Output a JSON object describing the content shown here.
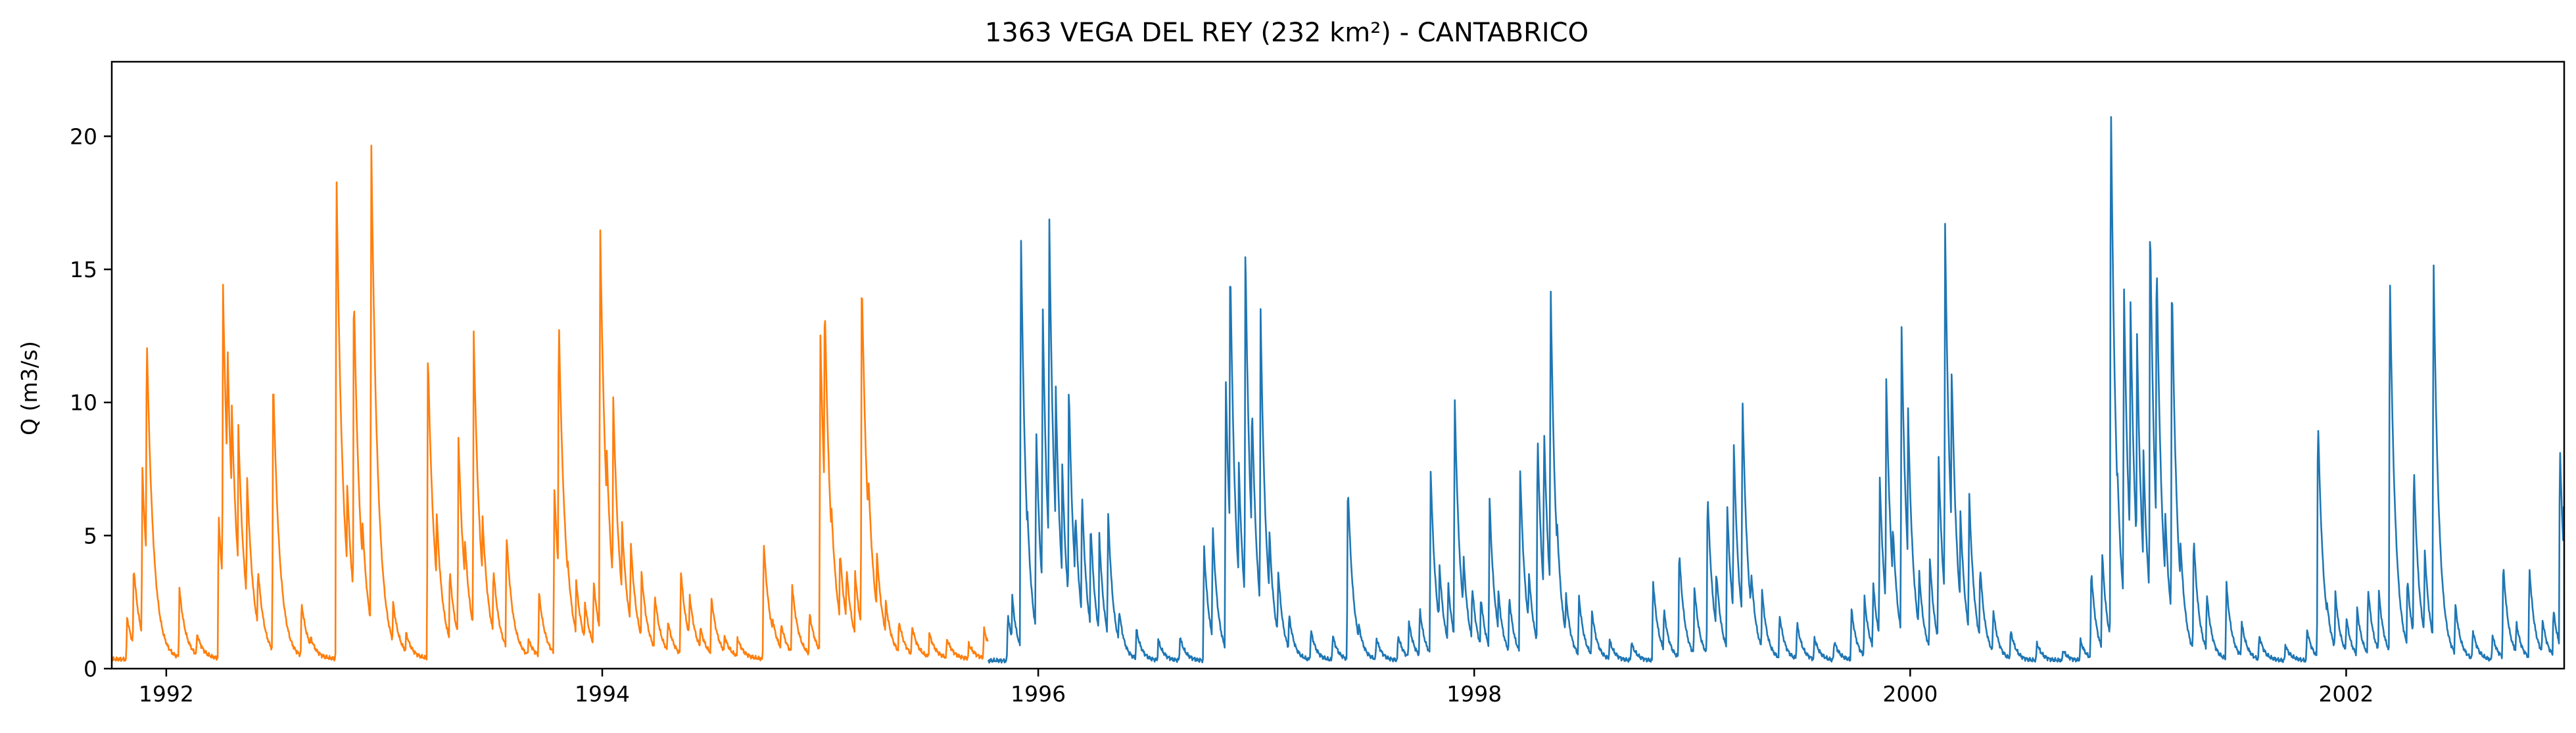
{
  "chart_data": {
    "type": "line",
    "title": "1363 VEGA DEL REY (232 km²) - CANTABRICO",
    "xlabel": "",
    "ylabel": "Q (m3/s)",
    "xlim": [
      1991.75,
      2003.0
    ],
    "ylim": [
      0,
      22.8
    ],
    "x_ticks": [
      1992,
      1994,
      1996,
      1998,
      2000,
      2002
    ],
    "x_tick_labels": [
      "1992",
      "1994",
      "1996",
      "1998",
      "2000",
      "2002"
    ],
    "y_ticks": [
      0,
      5,
      10,
      15,
      20
    ],
    "y_tick_labels": [
      "0",
      "5",
      "10",
      "15",
      "20"
    ],
    "grid": false,
    "legend": "none",
    "series": [
      {
        "color": "#ff7f0e",
        "x_range": [
          1991.75,
          1995.77
        ],
        "base": 0.35,
        "recession": 0.03,
        "events": [
          [
            1991.82,
            1.6
          ],
          [
            1991.85,
            3.6
          ],
          [
            1991.89,
            7.3
          ],
          [
            1991.91,
            12.5
          ],
          [
            1991.97,
            1.4
          ],
          [
            1992.06,
            2.7
          ],
          [
            1992.14,
            1.0
          ],
          [
            1992.24,
            5.5
          ],
          [
            1992.26,
            14.2
          ],
          [
            1992.28,
            12.3
          ],
          [
            1992.3,
            9.8
          ],
          [
            1992.33,
            8.9
          ],
          [
            1992.37,
            7.0
          ],
          [
            1992.42,
            3.5
          ],
          [
            1992.49,
            10.8
          ],
          [
            1992.55,
            1.0
          ],
          [
            1992.62,
            2.2
          ],
          [
            1992.66,
            0.9
          ],
          [
            1992.78,
            18.7
          ],
          [
            1992.8,
            7.0
          ],
          [
            1992.83,
            6.6
          ],
          [
            1992.86,
            14.2
          ],
          [
            1992.9,
            5.2
          ],
          [
            1992.94,
            19.7
          ],
          [
            1992.98,
            4.6
          ],
          [
            1993.04,
            2.2
          ],
          [
            1993.1,
            1.0
          ],
          [
            1993.2,
            11.7
          ],
          [
            1993.24,
            5.6
          ],
          [
            1993.3,
            3.4
          ],
          [
            1993.34,
            8.4
          ],
          [
            1993.37,
            4.5
          ],
          [
            1993.41,
            12.5
          ],
          [
            1993.45,
            5.5
          ],
          [
            1993.5,
            3.5
          ],
          [
            1993.56,
            4.8
          ],
          [
            1993.6,
            1.2
          ],
          [
            1993.66,
            0.8
          ],
          [
            1993.71,
            2.5
          ],
          [
            1993.78,
            6.5
          ],
          [
            1993.8,
            13.2
          ],
          [
            1993.84,
            3.9
          ],
          [
            1993.88,
            3.0
          ],
          [
            1993.92,
            2.2
          ],
          [
            1993.96,
            3.0
          ],
          [
            1993.99,
            16.6
          ],
          [
            1994.02,
            8.0
          ],
          [
            1994.05,
            10.0
          ],
          [
            1994.09,
            5.3
          ],
          [
            1994.13,
            4.5
          ],
          [
            1994.18,
            3.3
          ],
          [
            1994.24,
            2.5
          ],
          [
            1994.3,
            1.5
          ],
          [
            1994.36,
            3.4
          ],
          [
            1994.4,
            2.5
          ],
          [
            1994.45,
            1.2
          ],
          [
            1994.5,
            2.4
          ],
          [
            1994.56,
            0.9
          ],
          [
            1994.62,
            0.8
          ],
          [
            1994.74,
            4.5
          ],
          [
            1994.78,
            1.6
          ],
          [
            1994.82,
            1.4
          ],
          [
            1994.87,
            2.9
          ],
          [
            1994.95,
            1.8
          ],
          [
            1995.0,
            12.5
          ],
          [
            1995.02,
            13.8
          ],
          [
            1995.05,
            6.0
          ],
          [
            1995.09,
            4.2
          ],
          [
            1995.12,
            3.5
          ],
          [
            1995.16,
            3.3
          ],
          [
            1995.19,
            14.7
          ],
          [
            1995.22,
            7.2
          ],
          [
            1995.26,
            4.0
          ],
          [
            1995.3,
            2.2
          ],
          [
            1995.36,
            1.5
          ],
          [
            1995.42,
            1.3
          ],
          [
            1995.5,
            1.0
          ],
          [
            1995.58,
            0.8
          ],
          [
            1995.68,
            0.6
          ],
          [
            1995.75,
            1.2
          ]
        ]
      },
      {
        "color": "#1f77b4",
        "x_range": [
          1995.77,
          2003.0
        ],
        "base": 0.3,
        "recession": 0.025,
        "events": [
          [
            1995.86,
            1.8
          ],
          [
            1995.88,
            2.5
          ],
          [
            1995.92,
            16.6
          ],
          [
            1995.95,
            5.8
          ],
          [
            1995.99,
            9.0
          ],
          [
            1996.02,
            13.8
          ],
          [
            1996.05,
            17.2
          ],
          [
            1996.08,
            10.5
          ],
          [
            1996.11,
            7.5
          ],
          [
            1996.14,
            10.6
          ],
          [
            1996.17,
            5.8
          ],
          [
            1996.2,
            6.5
          ],
          [
            1996.24,
            5.3
          ],
          [
            1996.28,
            4.8
          ],
          [
            1996.32,
            5.7
          ],
          [
            1996.37,
            2.0
          ],
          [
            1996.45,
            1.2
          ],
          [
            1996.55,
            0.8
          ],
          [
            1996.65,
            0.9
          ],
          [
            1996.76,
            4.4
          ],
          [
            1996.8,
            5.2
          ],
          [
            1996.86,
            10.8
          ],
          [
            1996.88,
            15.5
          ],
          [
            1996.92,
            7.5
          ],
          [
            1996.95,
            15.8
          ],
          [
            1996.98,
            10.0
          ],
          [
            1997.02,
            13.2
          ],
          [
            1997.06,
            5.0
          ],
          [
            1997.1,
            3.5
          ],
          [
            1997.15,
            1.8
          ],
          [
            1997.25,
            1.2
          ],
          [
            1997.35,
            1.0
          ],
          [
            1997.42,
            6.8
          ],
          [
            1997.47,
            1.4
          ],
          [
            1997.55,
            0.9
          ],
          [
            1997.65,
            1.0
          ],
          [
            1997.7,
            1.5
          ],
          [
            1997.75,
            2.0
          ],
          [
            1997.8,
            7.3
          ],
          [
            1997.84,
            3.7
          ],
          [
            1997.88,
            3.0
          ],
          [
            1997.91,
            10.2
          ],
          [
            1997.95,
            4.1
          ],
          [
            1997.99,
            2.9
          ],
          [
            1998.03,
            2.5
          ],
          [
            1998.07,
            6.2
          ],
          [
            1998.11,
            2.7
          ],
          [
            1998.16,
            2.5
          ],
          [
            1998.21,
            7.4
          ],
          [
            1998.25,
            3.5
          ],
          [
            1998.29,
            8.7
          ],
          [
            1998.32,
            9.0
          ],
          [
            1998.35,
            14.5
          ],
          [
            1998.38,
            5.3
          ],
          [
            1998.42,
            2.6
          ],
          [
            1998.48,
            2.5
          ],
          [
            1998.54,
            1.9
          ],
          [
            1998.62,
            0.8
          ],
          [
            1998.72,
            0.7
          ],
          [
            1998.82,
            3.1
          ],
          [
            1998.87,
            2.0
          ],
          [
            1998.94,
            4.2
          ],
          [
            1999.01,
            2.8
          ],
          [
            1999.07,
            6.5
          ],
          [
            1999.11,
            3.5
          ],
          [
            1999.16,
            6.0
          ],
          [
            1999.19,
            8.4
          ],
          [
            1999.23,
            10.2
          ],
          [
            1999.27,
            3.5
          ],
          [
            1999.32,
            2.7
          ],
          [
            1999.4,
            1.8
          ],
          [
            1999.48,
            1.5
          ],
          [
            1999.56,
            0.9
          ],
          [
            1999.65,
            0.8
          ],
          [
            1999.73,
            2.0
          ],
          [
            1999.79,
            2.4
          ],
          [
            1999.83,
            3.0
          ],
          [
            1999.86,
            7.0
          ],
          [
            1999.89,
            10.7
          ],
          [
            1999.92,
            5.2
          ],
          [
            1999.96,
            12.8
          ],
          [
            1999.99,
            9.5
          ],
          [
            2000.04,
            3.5
          ],
          [
            2000.09,
            3.9
          ],
          [
            2000.13,
            7.8
          ],
          [
            2000.16,
            16.6
          ],
          [
            2000.19,
            11.3
          ],
          [
            2000.23,
            5.7
          ],
          [
            2000.27,
            6.5
          ],
          [
            2000.32,
            3.7
          ],
          [
            2000.38,
            2.0
          ],
          [
            2000.46,
            1.2
          ],
          [
            2000.58,
            0.7
          ],
          [
            2000.7,
            0.4
          ],
          [
            2000.78,
            0.8
          ],
          [
            2000.83,
            3.5
          ],
          [
            2000.88,
            4.2
          ],
          [
            2000.92,
            21.8
          ],
          [
            2000.95,
            7.5
          ],
          [
            2000.98,
            14.5
          ],
          [
            2001.01,
            13.9
          ],
          [
            2001.04,
            12.5
          ],
          [
            2001.07,
            7.9
          ],
          [
            2001.1,
            16.9
          ],
          [
            2001.13,
            15.7
          ],
          [
            2001.17,
            5.6
          ],
          [
            2001.2,
            14.8
          ],
          [
            2001.24,
            4.5
          ],
          [
            2001.3,
            4.8
          ],
          [
            2001.36,
            2.6
          ],
          [
            2001.45,
            3.0
          ],
          [
            2001.52,
            1.5
          ],
          [
            2001.6,
            1.0
          ],
          [
            2001.72,
            0.6
          ],
          [
            2001.82,
            1.2
          ],
          [
            2001.87,
            9.4
          ],
          [
            2001.91,
            2.4
          ],
          [
            2001.95,
            2.6
          ],
          [
            2002.0,
            1.7
          ],
          [
            2002.05,
            2.0
          ],
          [
            2002.1,
            2.8
          ],
          [
            2002.15,
            2.6
          ],
          [
            2002.2,
            14.9
          ],
          [
            2002.24,
            2.8
          ],
          [
            2002.28,
            3.2
          ],
          [
            2002.31,
            7.5
          ],
          [
            2002.36,
            4.3
          ],
          [
            2002.4,
            15.5
          ],
          [
            2002.44,
            3.0
          ],
          [
            2002.5,
            2.2
          ],
          [
            2002.58,
            1.2
          ],
          [
            2002.67,
            1.0
          ],
          [
            2002.72,
            3.7
          ],
          [
            2002.78,
            1.5
          ],
          [
            2002.84,
            3.6
          ],
          [
            2002.9,
            1.6
          ],
          [
            2002.95,
            2.0
          ],
          [
            2002.98,
            8.3
          ],
          [
            2003.0,
            12.3
          ]
        ]
      }
    ]
  }
}
